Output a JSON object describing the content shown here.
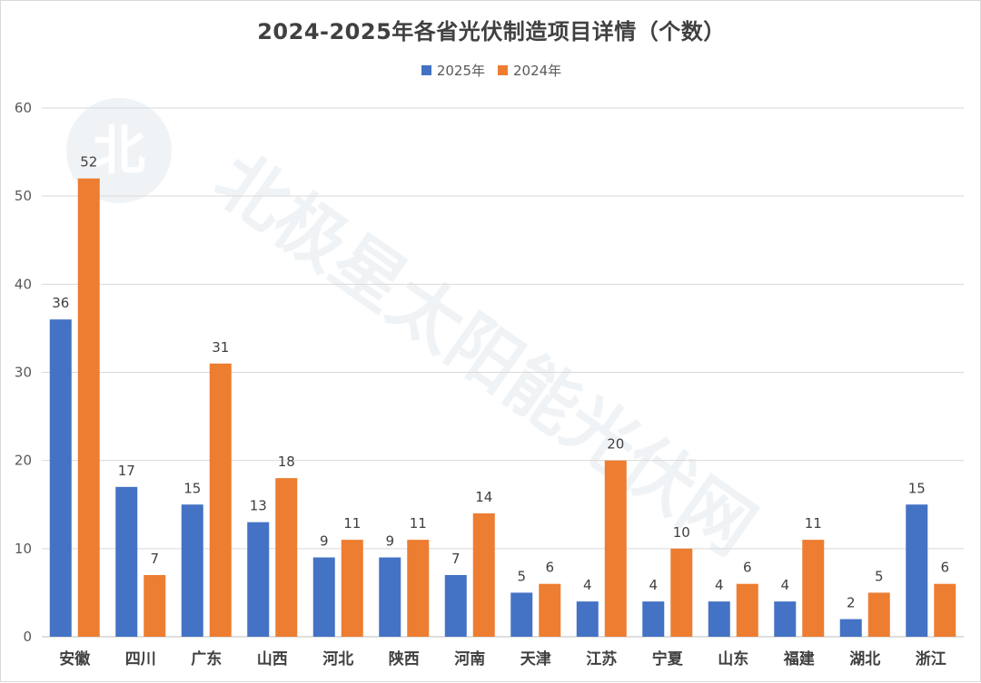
{
  "chart_data": {
    "type": "bar",
    "title": "2024-2025年各省光伏制造项目详情（个数）",
    "categories": [
      "安徽",
      "四川",
      "广东",
      "山西",
      "河北",
      "陕西",
      "河南",
      "天津",
      "江苏",
      "宁夏",
      "山东",
      "福建",
      "湖北",
      "浙江"
    ],
    "series": [
      {
        "name": "2025年",
        "color": "#4472C4",
        "values": [
          36,
          17,
          15,
          13,
          9,
          9,
          7,
          5,
          4,
          4,
          4,
          4,
          2,
          15
        ]
      },
      {
        "name": "2024年",
        "color": "#ED7D31",
        "values": [
          52,
          7,
          31,
          18,
          11,
          11,
          14,
          6,
          20,
          10,
          6,
          11,
          5,
          6
        ]
      }
    ],
    "ylim": [
      0,
      60
    ],
    "yticks": [
      0,
      10,
      20,
      30,
      40,
      50,
      60
    ],
    "grid": true,
    "legend_position": "top",
    "data_labels": true,
    "watermark_text": "北极星太阳能光伏网"
  }
}
